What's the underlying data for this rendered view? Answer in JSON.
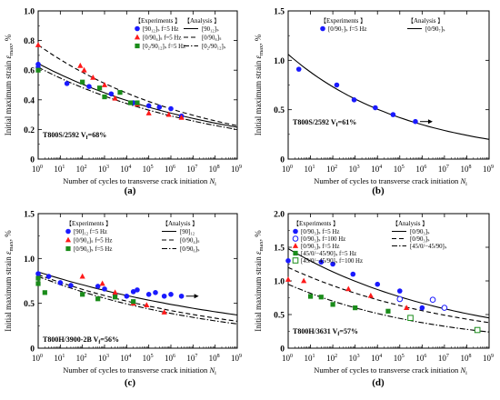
{
  "chart_data": [
    {
      "type": "scatter",
      "panel_label": "(a)",
      "xlabel": "Number of cycles to transverse crack initiation",
      "xlabel_sym": "N",
      "xlabel_sub": "i",
      "ylabel": "Initial maximum strain",
      "ylabel_sym": "ε",
      "ylabel_sub": "max",
      "ylabel_unit": "%",
      "x_scale": "log",
      "xlim": [
        1,
        1000000000
      ],
      "ylim": [
        0,
        1.0
      ],
      "y_ticks": [
        "0",
        "0.2",
        "0.4",
        "0.6",
        "0.8",
        "1.0"
      ],
      "x_ticks": [
        "10",
        "10",
        "10",
        "10",
        "10",
        "10",
        "10",
        "10",
        "10",
        "10"
      ],
      "x_tick_exps": [
        "0",
        "1",
        "2",
        "3",
        "4",
        "5",
        "6",
        "7",
        "8",
        "9"
      ],
      "annotation": "T800S/2592  V",
      "annotation_sub": "f",
      "annotation_val": "=68%",
      "legend_exp_header": "【Experiments 】",
      "legend_ana_header": "【Analysis 】",
      "legend_exp": [
        "[90₁₂]ₛ f=5 Hz",
        "[0/90₆]ₛ f=5 Hz",
        "[0₂/90₁₂]ₛ f=5 Hz"
      ],
      "legend_ana": [
        "[90₁₂]ₛ",
        "[0/90₆]ₛ",
        "[0₂/90₁₂]ₛ"
      ],
      "curves": [
        {
          "style": "solid",
          "x": [
            1,
            1000000000
          ],
          "y": [
            0.645,
            0.215
          ]
        },
        {
          "style": "dashed",
          "x": [
            1,
            1000000000
          ],
          "y": [
            0.77,
            0.225
          ]
        },
        {
          "style": "dashdot",
          "x": [
            1,
            1000000000
          ],
          "y": [
            0.62,
            0.2
          ]
        }
      ],
      "series": [
        {
          "marker": "circle",
          "color": "#1a1aff",
          "x": [
            1,
            1,
            20,
            200,
            2000,
            20000,
            100000,
            300000,
            1000000,
            3000000
          ],
          "y": [
            0.64,
            0.62,
            0.51,
            0.49,
            0.44,
            0.38,
            0.36,
            0.35,
            0.34,
            0.29
          ]
        },
        {
          "marker": "triangle",
          "color": "#ff1a1a",
          "x": [
            1,
            80,
            120,
            300,
            1000,
            3000,
            30000,
            100000,
            800000,
            3000000
          ],
          "y": [
            0.77,
            0.63,
            0.6,
            0.55,
            0.5,
            0.41,
            0.37,
            0.31,
            0.3,
            0.28
          ]
        },
        {
          "marker": "square",
          "color": "#1a8c1a",
          "x": [
            1,
            100,
            600,
            1000,
            5000,
            15000,
            30000
          ],
          "y": [
            0.6,
            0.52,
            0.48,
            0.42,
            0.45,
            0.38,
            0.38
          ]
        }
      ]
    },
    {
      "type": "scatter",
      "panel_label": "(b)",
      "xlabel": "Number of cycles to transverse crack initiation",
      "xlabel_sym": "N",
      "xlabel_sub": "i",
      "ylabel": "Initial maximum strain",
      "ylabel_sym": "ε",
      "ylabel_sub": "max",
      "ylabel_unit": "%",
      "x_scale": "log",
      "xlim": [
        1,
        1000000000
      ],
      "ylim": [
        0,
        1.5
      ],
      "y_ticks": [
        "0",
        "0.5",
        "1.0",
        "1.5"
      ],
      "x_ticks": [
        "10",
        "10",
        "10",
        "10",
        "10",
        "10",
        "10",
        "10",
        "10",
        "10"
      ],
      "x_tick_exps": [
        "0",
        "1",
        "2",
        "3",
        "4",
        "5",
        "6",
        "7",
        "8",
        "9"
      ],
      "annotation": "T800S/2592  V",
      "annotation_sub": "f",
      "annotation_val": "=61%",
      "legend_exp_header": "【Experiments 】",
      "legend_ana_header": "【Analysis 】",
      "legend_exp": [
        "[0/90₇]ₛ f=5 Hz"
      ],
      "legend_ana": [
        "[0/90₇]ₛ"
      ],
      "curves": [
        {
          "style": "solid",
          "x": [
            1,
            1000000000
          ],
          "y": [
            1.06,
            0.2
          ]
        }
      ],
      "runout_arrows": [
        {
          "x": 500000,
          "y": 0.38
        }
      ],
      "series": [
        {
          "marker": "circle",
          "color": "#1a1aff",
          "x": [
            3,
            150,
            900,
            8000,
            50000,
            500000
          ],
          "y": [
            0.91,
            0.75,
            0.6,
            0.52,
            0.45,
            0.38
          ]
        }
      ]
    },
    {
      "type": "scatter",
      "panel_label": "(c)",
      "xlabel": "Number of cycles to transverse crack initiation",
      "xlabel_sym": "N",
      "xlabel_sub": "i",
      "ylabel": "Initial maximum strain",
      "ylabel_sym": "ε",
      "ylabel_sub": "max",
      "ylabel_unit": "%",
      "x_scale": "log",
      "xlim": [
        1,
        1000000000
      ],
      "ylim": [
        0,
        1.5
      ],
      "y_ticks": [
        "0",
        "0.5",
        "1.0",
        "1.5"
      ],
      "x_ticks": [
        "10",
        "10",
        "10",
        "10",
        "10",
        "10",
        "10",
        "10",
        "10",
        "10"
      ],
      "x_tick_exps": [
        "0",
        "1",
        "2",
        "3",
        "4",
        "5",
        "6",
        "7",
        "8",
        "9"
      ],
      "annotation": "T800H/3900-2B  V",
      "annotation_sub": "f",
      "annotation_val": "=56%",
      "legend_exp_header": "【Experiments 】",
      "legend_ana_header": "【Analysis 】",
      "legend_exp": [
        "[90]₁₂ f=5 Hz",
        "[0/90₄]ₛ f=5 Hz",
        "[0/90₆]ₛ f=5 Hz"
      ],
      "legend_ana": [
        "[90]₁₂",
        "[0/90₄]ₛ",
        "[0/90₆]ₛ"
      ],
      "curves": [
        {
          "style": "solid",
          "x": [
            1,
            1000000000
          ],
          "y": [
            0.85,
            0.37
          ]
        },
        {
          "style": "dashed",
          "x": [
            1,
            1000000000
          ],
          "y": [
            0.82,
            0.3
          ]
        },
        {
          "style": "dashdot",
          "x": [
            1,
            1000000000
          ],
          "y": [
            0.8,
            0.27
          ]
        }
      ],
      "runout_arrows": [
        {
          "x": 3000000,
          "y": 0.58
        }
      ],
      "series": [
        {
          "marker": "circle",
          "color": "#1a1aff",
          "x": [
            1,
            3,
            10,
            30,
            500,
            1000,
            3000,
            10000,
            20000,
            30000,
            100000,
            200000,
            500000,
            1000000,
            3000000
          ],
          "y": [
            0.83,
            0.8,
            0.73,
            0.7,
            0.69,
            0.66,
            0.6,
            0.58,
            0.63,
            0.65,
            0.6,
            0.62,
            0.58,
            0.6,
            0.58
          ]
        },
        {
          "marker": "triangle",
          "color": "#ff1a1a",
          "x": [
            100,
            800,
            3000,
            20000,
            80000,
            500000
          ],
          "y": [
            0.8,
            0.72,
            0.62,
            0.5,
            0.48,
            0.4
          ]
        },
        {
          "marker": "square",
          "color": "#1a8c1a",
          "x": [
            1,
            1,
            2,
            100,
            500,
            3000,
            20000
          ],
          "y": [
            0.78,
            0.72,
            0.62,
            0.6,
            0.55,
            0.57,
            0.52
          ]
        }
      ]
    },
    {
      "type": "scatter",
      "panel_label": "(d)",
      "xlabel": "Number of cycles to transverse crack initiation",
      "xlabel_sym": "N",
      "xlabel_sub": "i",
      "ylabel": "Initial maximum strain",
      "ylabel_sym": "ε",
      "ylabel_sub": "max",
      "ylabel_unit": "%",
      "x_scale": "log",
      "xlim": [
        1,
        1000000000
      ],
      "ylim": [
        0,
        2.0
      ],
      "y_ticks": [
        "0",
        "0.5",
        "1.0",
        "1.5",
        "2.0"
      ],
      "x_ticks": [
        "10",
        "10",
        "10",
        "10",
        "10",
        "10",
        "10",
        "10",
        "10",
        "10"
      ],
      "x_tick_exps": [
        "0",
        "1",
        "2",
        "3",
        "4",
        "5",
        "6",
        "7",
        "8",
        "9"
      ],
      "annotation": "T800H/3631  V",
      "annotation_sub": "f",
      "annotation_val": "=57%",
      "legend_exp_header": "【Experiments 】",
      "legend_ana_header": "【Analysis 】",
      "legend_exp": [
        "[0/90₃]ₛ f=5 Hz",
        "[0/90₃]ₛ f=100 Hz",
        "[0/90₃]ₛ f=5 Hz",
        "[45/0/−45/90]ₛ f=5 Hz",
        "[45/0/−45/90]ₛ f=100 Hz"
      ],
      "legend_ana": [
        "[0/90₃]ₛ",
        "[0/90₃]ₛ",
        "[45/0/−45/90]ₛ"
      ],
      "curves": [
        {
          "style": "solid",
          "x": [
            1,
            1000000000
          ],
          "y": [
            1.48,
            0.45
          ]
        },
        {
          "style": "dashed",
          "x": [
            1,
            1000000000
          ],
          "y": [
            1.2,
            0.38
          ]
        },
        {
          "style": "dashdot",
          "x": [
            1,
            1000000000
          ],
          "y": [
            0.95,
            0.24
          ]
        }
      ],
      "series": [
        {
          "marker": "circle",
          "color": "#1a1aff",
          "x": [
            1,
            30,
            100,
            800,
            10000,
            100000,
            1000000
          ],
          "y": [
            1.3,
            1.28,
            1.25,
            1.1,
            0.95,
            0.85,
            0.6
          ]
        },
        {
          "marker": "open-circle",
          "color": "#1a1aff",
          "x": [
            100000,
            3000000,
            10000000
          ],
          "y": [
            0.73,
            0.72,
            0.6
          ]
        },
        {
          "marker": "triangle",
          "color": "#ff1a1a",
          "x": [
            1,
            5,
            500,
            5000,
            200000
          ],
          "y": [
            1.02,
            1.0,
            0.88,
            0.78,
            0.6
          ]
        },
        {
          "marker": "square",
          "color": "#1a8c1a",
          "x": [
            10,
            30,
            100,
            1000,
            30000
          ],
          "y": [
            0.77,
            0.76,
            0.65,
            0.6,
            0.55
          ]
        },
        {
          "marker": "open-square",
          "color": "#1a8c1a",
          "x": [
            300000,
            300000000
          ],
          "y": [
            0.45,
            0.27
          ]
        }
      ]
    }
  ]
}
